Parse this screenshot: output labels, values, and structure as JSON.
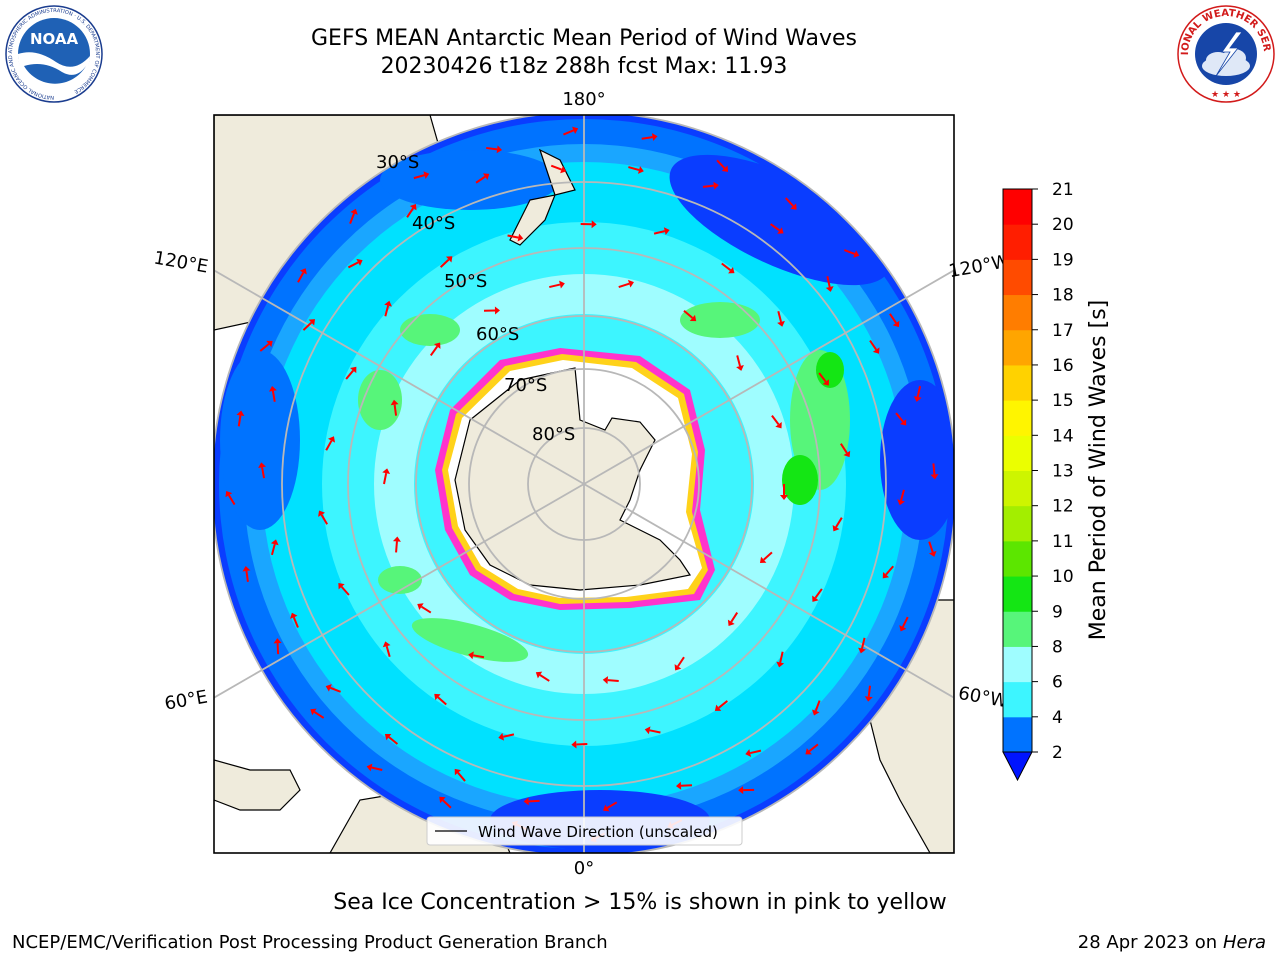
{
  "title": {
    "line1": "GEFS MEAN Antarctic Mean Period of Wind Waves",
    "line2": "20230426 t18z 288h fcst   Max: 11.93"
  },
  "logos": {
    "noaa": {
      "text": "NOAA",
      "ring_text": "NATIONAL OCEANIC AND ATMOSPHERIC ADMINISTRATION · U.S. DEPARTMENT OF COMMERCE"
    },
    "nws": {
      "ring_text": "NATIONAL WEATHER SERVICE"
    }
  },
  "map": {
    "projection": "south-polar-stereographic",
    "longitude_labels": {
      "top": "180°",
      "bottom": "0°",
      "upper_left": "120°E",
      "upper_right": "120°W",
      "lower_left": "60°E",
      "lower_right": "60°W"
    },
    "latitude_labels": [
      "30°S",
      "40°S",
      "50°S",
      "60°S",
      "70°S",
      "80°S"
    ],
    "colors": {
      "land": "#efebdc",
      "ice_edge": "#ff33cc",
      "ice_inner": "#ffd21a",
      "arrow": "#ff0000",
      "grid": "#b8b8b8"
    }
  },
  "legend": {
    "label": "Wind Wave Direction (unscaled)"
  },
  "colorbar": {
    "label": "Mean Period of Wind Waves [s]",
    "ticks": [
      "2",
      "4",
      "6",
      "8",
      "9",
      "10",
      "11",
      "12",
      "13",
      "14",
      "15",
      "16",
      "17",
      "18",
      "19",
      "20",
      "21"
    ],
    "levels": [
      2,
      4,
      6,
      8,
      9,
      10,
      11,
      12,
      13,
      14,
      15,
      16,
      17,
      18,
      19,
      20,
      21
    ],
    "colors": [
      "#0073ff",
      "#00e1ff",
      "#3df5ff",
      "#9ffdff",
      "#57f57a",
      "#14e614",
      "#5ce600",
      "#a3ee00",
      "#cdf500",
      "#ebff00",
      "#fff500",
      "#ffd200",
      "#ffa500",
      "#ff7d00",
      "#ff4b00",
      "#ff1e00",
      "#ff0000"
    ],
    "under_color": "#0014ff"
  },
  "notes": {
    "ice": "Sea Ice Concentration > 15% is shown in pink to yellow"
  },
  "footer": {
    "left": "NCEP/EMC/Verification Post Processing Product Generation Branch",
    "right_prefix": "28 Apr 2023 on ",
    "right_host": "Hera"
  }
}
